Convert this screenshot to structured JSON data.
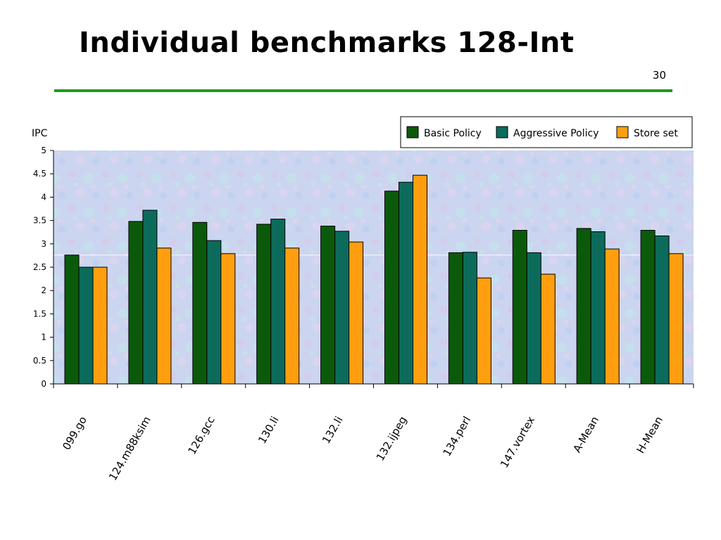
{
  "slide": {
    "title": "Individual benchmarks 128-Int",
    "page_number": "30",
    "rule_color": "#1f9a1f"
  },
  "chart_data": {
    "type": "bar",
    "ylabel": "IPC",
    "xlabel": "",
    "ylim": [
      0,
      5
    ],
    "yticks": [
      "0",
      "0.5",
      "1",
      "1.5",
      "2",
      "2.5",
      "3",
      "3.5",
      "4",
      "4.5",
      "5"
    ],
    "grid": false,
    "legend_position": "top-right",
    "categories": [
      "099.go",
      "124.m88ksim",
      "126.gcc",
      "130.li",
      "132.li",
      "132.ijpeg",
      "134.perl",
      "147.vortex",
      "A-Mean",
      "H-Mean"
    ],
    "series": [
      {
        "name": "Basic Policy",
        "color": "#0b5a0b",
        "values": [
          2.76,
          3.48,
          3.46,
          3.42,
          3.38,
          4.13,
          2.81,
          3.29,
          3.33,
          3.29
        ]
      },
      {
        "name": "Aggressive Policy",
        "color": "#0c6b5a",
        "values": [
          2.5,
          3.72,
          3.07,
          3.53,
          3.27,
          4.32,
          2.82,
          2.81,
          3.26,
          3.17
        ]
      },
      {
        "name": "Store set",
        "color": "#ff9f0f",
        "values": [
          2.5,
          2.91,
          2.79,
          2.91,
          3.04,
          4.47,
          2.27,
          2.35,
          2.89,
          2.79
        ]
      }
    ]
  }
}
